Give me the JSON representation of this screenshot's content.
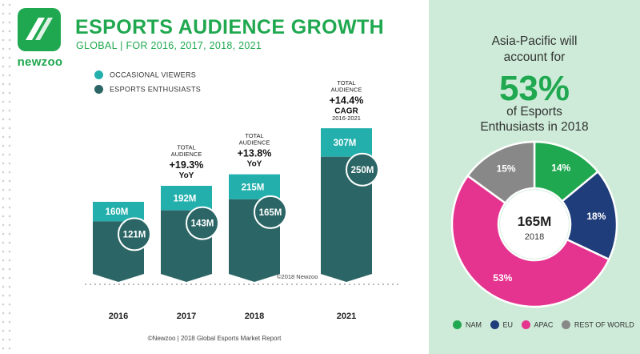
{
  "brand": {
    "name": "newzoo"
  },
  "header": {
    "title": "ESPORTS AUDIENCE GROWTH",
    "subtitle": "GLOBAL | FOR 2016, 2017, 2018, 2021"
  },
  "legend": {
    "occasional": "OCCASIONAL VIEWERS",
    "enthusiasts": "ESPORTS ENTHUSIASTS"
  },
  "colors": {
    "occasional": "#23b0ad",
    "enthusiasts": "#2b6565",
    "nam": "#1fa84f",
    "eu": "#1f3d7a",
    "apac": "#e5348f",
    "rest": "#888888",
    "brand": "#1fa84f"
  },
  "chart_data": [
    {
      "type": "bar",
      "categories": [
        "2016",
        "2017",
        "2018",
        "2021"
      ],
      "series": [
        {
          "name": "ESPORTS ENTHUSIASTS",
          "values": [
            121,
            143,
            165,
            250
          ]
        },
        {
          "name": "OCCASIONAL VIEWERS",
          "values": [
            160,
            192,
            215,
            307
          ]
        }
      ],
      "value_labels": {
        "ESPORTS ENTHUSIASTS": [
          "121M",
          "143M",
          "165M",
          "250M"
        ],
        "OCCASIONAL VIEWERS": [
          "160M",
          "192M",
          "215M",
          "307M"
        ]
      },
      "annotations": [
        {
          "category": "2017",
          "lines": [
            "TOTAL",
            "AUDIENCE",
            "+19.3%",
            "YoY"
          ]
        },
        {
          "category": "2018",
          "lines": [
            "TOTAL",
            "AUDIENCE",
            "+13.8%",
            "YoY"
          ]
        },
        {
          "category": "2021",
          "lines": [
            "TOTAL",
            "AUDIENCE",
            "+14.4%",
            "CAGR",
            "2016-2021"
          ]
        }
      ],
      "copyright": "©2018 Newzoo",
      "stacked": true
    },
    {
      "type": "pie",
      "donut": true,
      "categories": [
        "NAM",
        "EU",
        "APAC",
        "REST OF WORLD"
      ],
      "values": [
        14,
        18,
        53,
        15
      ],
      "labels": [
        "14%",
        "18%",
        "53%",
        "15%"
      ],
      "center_value": "165M",
      "center_label": "2018",
      "legend_position": "bottom"
    }
  ],
  "right_panel": {
    "line1": "Asia-Pacific will",
    "line2": "account for",
    "big": "53%",
    "line3": "of Esports",
    "line4": "Enthusiasts in 2018"
  },
  "footer": "©Newzoo | 2018 Global Esports Market Report"
}
